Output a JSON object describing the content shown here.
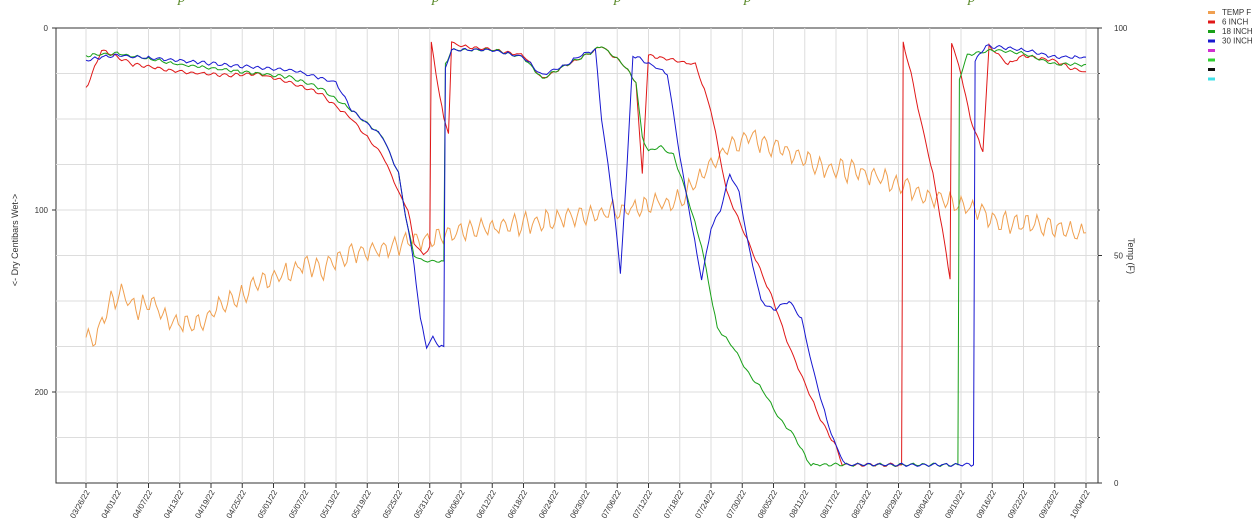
{
  "chart_data": {
    "type": "line",
    "title": "",
    "y_left": {
      "label": "<- Dry   Centibars   Wet->",
      "range": [
        0,
        250
      ],
      "inverted": true,
      "ticks": [
        0,
        100,
        200
      ]
    },
    "y_right": {
      "label": "Temp (F)",
      "range": [
        0,
        100
      ],
      "ticks": [
        0,
        50,
        100
      ]
    },
    "x_tick_labels": [
      "03/26/22",
      "04/01/22",
      "04/07/22",
      "04/13/22",
      "04/19/22",
      "04/25/22",
      "05/01/22",
      "05/07/22",
      "05/13/22",
      "05/19/22",
      "05/25/22",
      "05/31/22",
      "06/06/22",
      "06/12/22",
      "06/18/22",
      "06/24/22",
      "06/30/22",
      "07/06/22",
      "07/12/22",
      "07/18/22",
      "07/24/22",
      "07/30/22",
      "08/05/22",
      "08/11/22",
      "08/17/22",
      "08/23/22",
      "08/29/22",
      "09/04/22",
      "09/10/22",
      "09/16/22",
      "09/22/22",
      "09/28/22",
      "10/04/22"
    ],
    "grid": true,
    "legend_position": "right",
    "series": [
      {
        "name": "TEMP F",
        "axis": "right",
        "color": "#f0a050",
        "noise": 1.8,
        "points": [
          [
            0,
            32
          ],
          [
            0.3,
            32
          ],
          [
            0.8,
            40
          ],
          [
            1.2,
            42
          ],
          [
            1.6,
            38
          ],
          [
            2.1,
            40
          ],
          [
            2.6,
            36
          ],
          [
            3.1,
            35
          ],
          [
            3.6,
            35
          ],
          [
            4.1,
            38
          ],
          [
            4.6,
            40
          ],
          [
            5.2,
            42
          ],
          [
            5.8,
            45
          ],
          [
            6.4,
            46
          ],
          [
            7,
            48
          ],
          [
            7.6,
            47
          ],
          [
            8.2,
            50
          ],
          [
            8.8,
            51
          ],
          [
            9.6,
            52
          ],
          [
            10.3,
            53
          ],
          [
            11,
            54
          ],
          [
            12,
            55
          ],
          [
            13,
            56
          ],
          [
            14,
            57
          ],
          [
            15,
            58
          ],
          [
            16,
            59
          ],
          [
            17,
            60
          ],
          [
            18,
            61
          ],
          [
            19,
            62
          ],
          [
            19.5,
            66
          ],
          [
            20,
            70
          ],
          [
            20.6,
            74
          ],
          [
            21.2,
            76
          ],
          [
            22,
            74
          ],
          [
            22.8,
            72
          ],
          [
            23.4,
            70
          ],
          [
            24,
            69
          ],
          [
            25,
            68
          ],
          [
            26,
            66
          ],
          [
            27,
            63
          ],
          [
            28,
            61
          ],
          [
            28.6,
            60
          ],
          [
            29,
            58
          ],
          [
            30,
            57
          ],
          [
            31,
            56
          ],
          [
            32,
            55
          ]
        ]
      },
      {
        "name": "6 INCH",
        "axis": "left",
        "color": "#e01818",
        "noise": 0.7,
        "points": [
          [
            0,
            33
          ],
          [
            0.2,
            25
          ],
          [
            0.5,
            12
          ],
          [
            1.5,
            20
          ],
          [
            3,
            24
          ],
          [
            4.5,
            26
          ],
          [
            5.5,
            25
          ],
          [
            6.5,
            30
          ],
          [
            7.5,
            36
          ],
          [
            8.5,
            50
          ],
          [
            9.5,
            70
          ],
          [
            10,
            90
          ],
          [
            10.3,
            100
          ],
          [
            10.5,
            118
          ],
          [
            10.8,
            125
          ],
          [
            11,
            120
          ],
          [
            11.05,
            8
          ],
          [
            11.2,
            25
          ],
          [
            11.45,
            50
          ],
          [
            11.6,
            58
          ],
          [
            11.7,
            8
          ],
          [
            12,
            10
          ],
          [
            13,
            12
          ],
          [
            14,
            15
          ],
          [
            14.6,
            28
          ],
          [
            15.4,
            20
          ],
          [
            16,
            15
          ],
          [
            16.5,
            10
          ],
          [
            17.2,
            20
          ],
          [
            17.6,
            30
          ],
          [
            17.8,
            80
          ],
          [
            18,
            15
          ],
          [
            19.5,
            20
          ],
          [
            20,
            45
          ],
          [
            20.5,
            90
          ],
          [
            21,
            110
          ],
          [
            21.5,
            130
          ],
          [
            22,
            150
          ],
          [
            22.5,
            175
          ],
          [
            23,
            195
          ],
          [
            23.5,
            215
          ],
          [
            24,
            230
          ],
          [
            24.2,
            240
          ],
          [
            26.1,
            240
          ],
          [
            26.15,
            8
          ],
          [
            26.4,
            25
          ],
          [
            26.7,
            50
          ],
          [
            27.1,
            80
          ],
          [
            27.4,
            110
          ],
          [
            27.65,
            138
          ],
          [
            27.7,
            8
          ],
          [
            28,
            25
          ],
          [
            28.3,
            50
          ],
          [
            28.7,
            68
          ],
          [
            28.9,
            10
          ],
          [
            29.5,
            20
          ],
          [
            30,
            15
          ],
          [
            31,
            18
          ],
          [
            31.5,
            22
          ],
          [
            32,
            24
          ]
        ]
      },
      {
        "name": "18 INCH",
        "axis": "left",
        "color": "#18a018",
        "noise": 0.7,
        "points": [
          [
            0,
            15
          ],
          [
            1,
            14
          ],
          [
            3,
            20
          ],
          [
            5,
            24
          ],
          [
            6.5,
            27
          ],
          [
            7.5,
            33
          ],
          [
            8.5,
            45
          ],
          [
            9.5,
            60
          ],
          [
            10,
            80
          ],
          [
            10.3,
            110
          ],
          [
            10.5,
            125
          ],
          [
            10.8,
            128
          ],
          [
            11,
            128
          ],
          [
            11.3,
            128
          ],
          [
            11.45,
            128
          ],
          [
            11.5,
            20
          ],
          [
            11.7,
            12
          ],
          [
            13,
            12
          ],
          [
            14,
            16
          ],
          [
            14.6,
            28
          ],
          [
            15.4,
            20
          ],
          [
            16,
            15
          ],
          [
            16.5,
            10
          ],
          [
            17.2,
            20
          ],
          [
            17.6,
            30
          ],
          [
            17.8,
            60
          ],
          [
            18,
            68
          ],
          [
            18.4,
            65
          ],
          [
            18.8,
            70
          ],
          [
            19.2,
            90
          ],
          [
            19.7,
            120
          ],
          [
            20.2,
            165
          ],
          [
            20.7,
            175
          ],
          [
            21.2,
            190
          ],
          [
            21.7,
            200
          ],
          [
            22.2,
            215
          ],
          [
            22.7,
            225
          ],
          [
            23,
            235
          ],
          [
            23.2,
            240
          ],
          [
            27.9,
            240
          ],
          [
            27.95,
            28
          ],
          [
            28.2,
            15
          ],
          [
            29,
            12
          ],
          [
            30,
            14
          ],
          [
            31,
            20
          ],
          [
            32,
            20
          ]
        ]
      },
      {
        "name": "30 INCH",
        "axis": "left",
        "color": "#1818d0",
        "noise": 0.7,
        "points": [
          [
            0,
            18
          ],
          [
            0.5,
            16
          ],
          [
            1,
            15
          ],
          [
            3,
            18
          ],
          [
            5,
            21
          ],
          [
            6.5,
            23
          ],
          [
            7,
            25
          ],
          [
            8,
            30
          ],
          [
            8.5,
            45
          ],
          [
            9.5,
            60
          ],
          [
            10,
            80
          ],
          [
            10.3,
            110
          ],
          [
            10.5,
            130
          ],
          [
            10.7,
            160
          ],
          [
            10.9,
            175
          ],
          [
            11.1,
            170
          ],
          [
            11.3,
            175
          ],
          [
            11.45,
            175
          ],
          [
            11.5,
            22
          ],
          [
            11.7,
            12
          ],
          [
            13,
            12
          ],
          [
            14,
            16
          ],
          [
            14.6,
            26
          ],
          [
            15.4,
            20
          ],
          [
            15.8,
            15
          ],
          [
            16.3,
            12
          ],
          [
            16.5,
            50
          ],
          [
            16.9,
            100
          ],
          [
            17.1,
            135
          ],
          [
            17.3,
            80
          ],
          [
            17.5,
            15
          ],
          [
            18.6,
            25
          ],
          [
            19,
            70
          ],
          [
            19.4,
            110
          ],
          [
            19.7,
            138
          ],
          [
            20,
            110
          ],
          [
            20.3,
            100
          ],
          [
            20.6,
            80
          ],
          [
            20.9,
            90
          ],
          [
            21.2,
            120
          ],
          [
            21.6,
            150
          ],
          [
            22,
            155
          ],
          [
            22.5,
            150
          ],
          [
            22.9,
            160
          ],
          [
            23.3,
            190
          ],
          [
            23.7,
            215
          ],
          [
            24,
            230
          ],
          [
            24.3,
            240
          ],
          [
            28.4,
            240
          ],
          [
            28.45,
            18
          ],
          [
            28.8,
            10
          ],
          [
            30,
            12
          ],
          [
            31,
            16
          ],
          [
            32,
            16
          ]
        ]
      }
    ],
    "legend_entries": [
      {
        "name": "TEMP F",
        "color": "#f0a050"
      },
      {
        "name": "6 INCH",
        "color": "#e01818"
      },
      {
        "name": "18 INCH",
        "color": "#18a018"
      },
      {
        "name": "30 INCH",
        "color": "#1818d0"
      },
      {
        "name": "",
        "color": "#d030d0"
      },
      {
        "name": "",
        "color": "#30d030"
      },
      {
        "name": "",
        "color": "#111111"
      },
      {
        "name": "",
        "color": "#40e0e8"
      }
    ]
  }
}
